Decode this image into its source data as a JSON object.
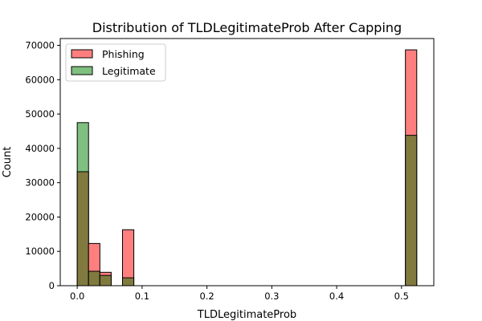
{
  "chart_data": {
    "type": "bar",
    "title": "Distribution of TLDLegitimateProb After Capping",
    "xlabel": "TLDLegitimateProb",
    "ylabel": "Count",
    "xlim": [
      -0.0262,
      0.5498
    ],
    "ylim": [
      0,
      72000
    ],
    "x_ticks": [
      {
        "value": 0.0,
        "label": "0.0"
      },
      {
        "value": 0.1,
        "label": "0.1"
      },
      {
        "value": 0.2,
        "label": "0.2"
      },
      {
        "value": 0.3,
        "label": "0.3"
      },
      {
        "value": 0.4,
        "label": "0.4"
      },
      {
        "value": 0.5,
        "label": "0.5"
      }
    ],
    "y_ticks": [
      {
        "value": 0,
        "label": "0"
      },
      {
        "value": 10000,
        "label": "10000"
      },
      {
        "value": 20000,
        "label": "20000"
      },
      {
        "value": 30000,
        "label": "30000"
      },
      {
        "value": 40000,
        "label": "40000"
      },
      {
        "value": 50000,
        "label": "50000"
      },
      {
        "value": 60000,
        "label": "60000"
      },
      {
        "value": 70000,
        "label": "70000"
      }
    ],
    "bins": {
      "start": 0.0,
      "width": 0.01745,
      "count": 30
    },
    "grid": false,
    "legend_position": "top-left",
    "overlap_color": "#807a3e",
    "series": [
      {
        "name": "Phishing",
        "color": "#ff7f7f",
        "values": [
          33200,
          12300,
          3900,
          0,
          16300,
          0,
          0,
          0,
          0,
          0,
          0,
          0,
          0,
          0,
          0,
          0,
          0,
          0,
          0,
          0,
          0,
          0,
          0,
          0,
          0,
          0,
          0,
          0,
          0,
          68700
        ]
      },
      {
        "name": "Legitimate",
        "color": "#7fbf7f",
        "values": [
          47500,
          4200,
          3000,
          0,
          2300,
          0,
          0,
          0,
          0,
          0,
          0,
          0,
          0,
          0,
          0,
          0,
          0,
          0,
          0,
          0,
          0,
          0,
          0,
          0,
          0,
          0,
          0,
          0,
          0,
          43800
        ]
      }
    ]
  }
}
